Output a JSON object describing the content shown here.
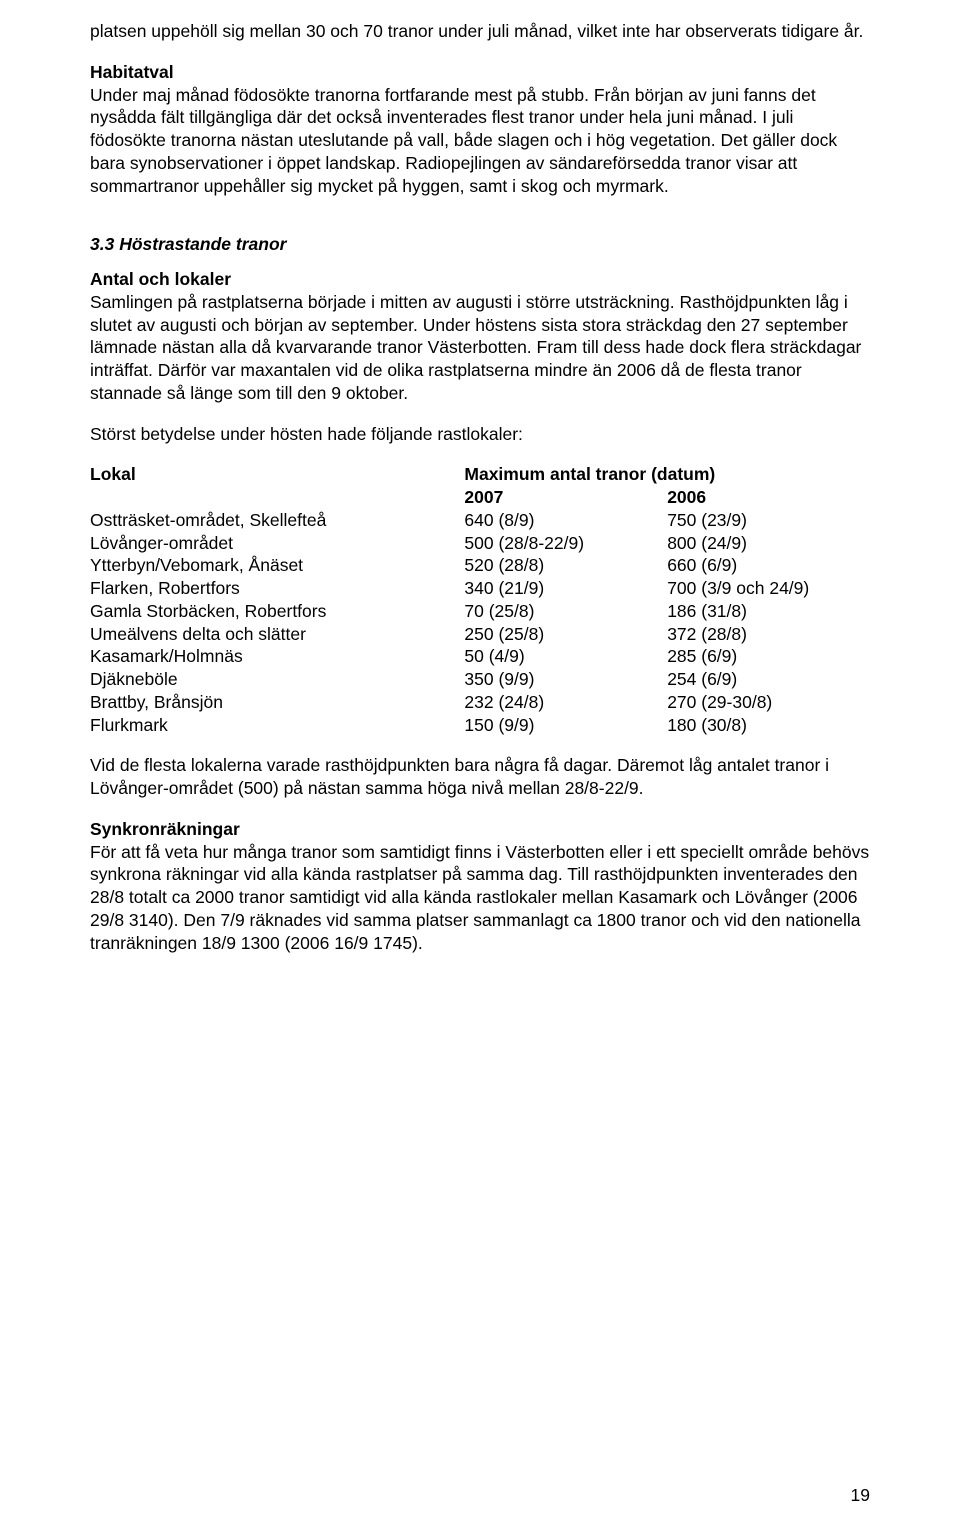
{
  "para1": "platsen uppehöll sig mellan 30 och 70 tranor under juli månad, vilket inte har observerats tidigare år.",
  "habitat_heading": "Habitatval",
  "habitat_body": "Under maj månad födosökte tranorna fortfarande mest på stubb. Från början av juni fanns det nysådda fält tillgängliga där det också inventerades flest tranor under hela juni månad. I juli födosökte tranorna nästan uteslutande på vall, både slagen och i hög vegetation. Det gäller dock bara synobservationer i öppet landskap. Radiopejlingen av sändareförsedda tranor visar att sommartranor uppehåller sig mycket på hyggen, samt i skog och myrmark.",
  "section_33_heading": "3.3 Höstrastande tranor",
  "antal_heading": "Antal och lokaler",
  "antal_body": "Samlingen på rastplatserna började i mitten av augusti i större utsträckning. Rasthöjdpunkten låg i slutet av augusti och början av september. Under höstens sista stora sträckdag den 27 september lämnade nästan alla då kvarvarande tranor Västerbotten. Fram till dess hade dock flera sträckdagar inträffat. Därför var maxantalen vid de olika rastplatserna mindre än 2006 då de flesta tranor stannade så länge som till den 9 oktober.",
  "storts_line": "Störst betydelse under hösten hade följande rastlokaler:",
  "table_header": {
    "col1": "Lokal",
    "col2a": "Maximum antal tranor (datum)",
    "col2b": "2007",
    "col3": "2006"
  },
  "table_rows": [
    {
      "lokal": "Ostträsket-området, Skellefteå",
      "y2007": "640 (8/9)",
      "y2006": "750 (23/9)"
    },
    {
      "lokal": "Lövånger-området",
      "y2007": "500 (28/8-22/9)",
      "y2006": "800 (24/9)"
    },
    {
      "lokal": "Ytterbyn/Vebomark, Ånäset",
      "y2007": "520 (28/8)",
      "y2006": "660 (6/9)"
    },
    {
      "lokal": "Flarken, Robertfors",
      "y2007": "340 (21/9)",
      "y2006": "700 (3/9 och 24/9)"
    },
    {
      "lokal": "Gamla Storbäcken, Robertfors",
      "y2007": "70 (25/8)",
      "y2006": "186 (31/8)"
    },
    {
      "lokal": "Umeälvens delta och slätter",
      "y2007": "250 (25/8)",
      "y2006": "372 (28/8)"
    },
    {
      "lokal": "Kasamark/Holmnäs",
      "y2007": "50 (4/9)",
      "y2006": "285 (6/9)"
    },
    {
      "lokal": "Djäkneböle",
      "y2007": "350 (9/9)",
      "y2006": "254 (6/9)"
    },
    {
      "lokal": "Brattby, Brånsjön",
      "y2007": "232 (24/8)",
      "y2006": "270 (29-30/8)"
    },
    {
      "lokal": "Flurkmark",
      "y2007": "150 (9/9)",
      "y2006": "180 (30/8)"
    }
  ],
  "vid_flesta": "Vid de flesta lokalerna varade rasthöjdpunkten bara några få dagar. Däremot låg antalet tranor i Lövånger-området (500) på nästan samma höga nivå mellan 28/8-22/9.",
  "synkron_heading": "Synkronräkningar",
  "synkron_body": "För att få veta hur många tranor som samtidigt finns i Västerbotten eller i ett speciellt område behövs synkrona räkningar vid alla kända rastplatser på samma dag. Till rasthöjdpunkten inventerades den 28/8 totalt ca 2000 tranor samtidigt vid alla kända rastlokaler mellan Kasamark och Lövånger (2006 29/8 3140). Den 7/9 räknades vid samma platser sammanlagt ca 1800 tranor och vid den nationella tranräkningen 18/9 1300 (2006 16/9 1745).",
  "page_number": "19"
}
